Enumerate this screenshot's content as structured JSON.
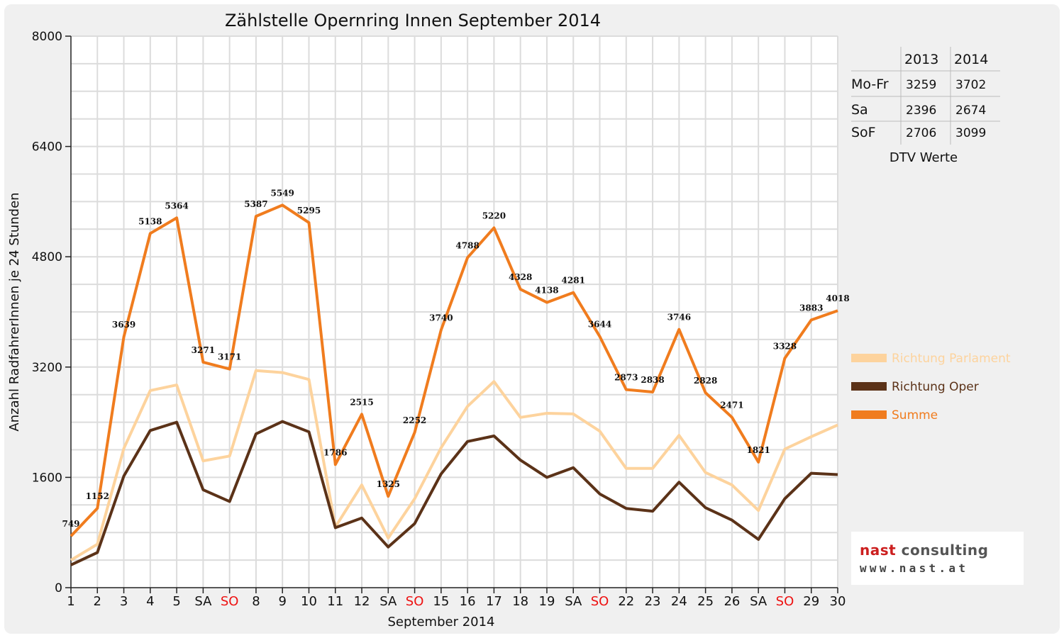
{
  "chart_data": {
    "type": "line",
    "title": "Zählstelle Opernring Innen September 2014",
    "xlabel": "September 2014",
    "ylabel": "Anzahl RadfahrerInnen je 24 Stunden",
    "ylim": [
      0,
      8000
    ],
    "yticks": [
      0,
      1600,
      3200,
      4800,
      6400,
      8000
    ],
    "grid": true,
    "legend_position": "right",
    "categories": [
      "1",
      "2",
      "3",
      "4",
      "5",
      "SA",
      "SO",
      "8",
      "9",
      "10",
      "11",
      "12",
      "SA",
      "SO",
      "15",
      "16",
      "17",
      "18",
      "19",
      "SA",
      "SO",
      "22",
      "23",
      "24",
      "25",
      "26",
      "SA",
      "SO",
      "29",
      "30"
    ],
    "highlight_categories": [
      "SO"
    ],
    "highlight_color": "#ee1111",
    "series": [
      {
        "name": "Richtung Parlament",
        "color": "#fdd39d",
        "values": [
          400,
          630,
          2020,
          2860,
          2940,
          1840,
          1910,
          3150,
          3120,
          3020,
          880,
          1490,
          720,
          1290,
          2030,
          2630,
          2990,
          2470,
          2530,
          2520,
          2270,
          1730,
          1730,
          2210,
          1670,
          1490,
          1120,
          2010,
          2190,
          2360
        ]
      },
      {
        "name": "Richtung Oper",
        "color": "#5b3218",
        "values": [
          330,
          510,
          1620,
          2280,
          2400,
          1420,
          1250,
          2230,
          2410,
          2260,
          870,
          1010,
          590,
          930,
          1650,
          2120,
          2200,
          1850,
          1600,
          1740,
          1360,
          1150,
          1110,
          1530,
          1160,
          980,
          700,
          1290,
          1660,
          1640
        ]
      },
      {
        "name": "Summe",
        "color": "#f07c1e",
        "labels": true,
        "values": [
          749,
          1152,
          3639,
          5138,
          5364,
          3271,
          3171,
          5387,
          5549,
          5295,
          1786,
          2515,
          1325,
          2252,
          3740,
          4788,
          5220,
          4328,
          4138,
          4281,
          3644,
          2873,
          2838,
          3746,
          2828,
          2471,
          1821,
          3328,
          3883,
          4018
        ]
      }
    ]
  },
  "dtv_table": {
    "columns": [
      "",
      "2013",
      "2014"
    ],
    "rows": [
      [
        "Mo-Fr",
        "3259",
        "3702"
      ],
      [
        "Sa",
        "2396",
        "2674"
      ],
      [
        "SoF",
        "2706",
        "3099"
      ]
    ],
    "caption": "DTV Werte"
  },
  "logo": {
    "name_part1": "nast",
    "name_part2": " consulting",
    "url": "www.nast.at"
  }
}
